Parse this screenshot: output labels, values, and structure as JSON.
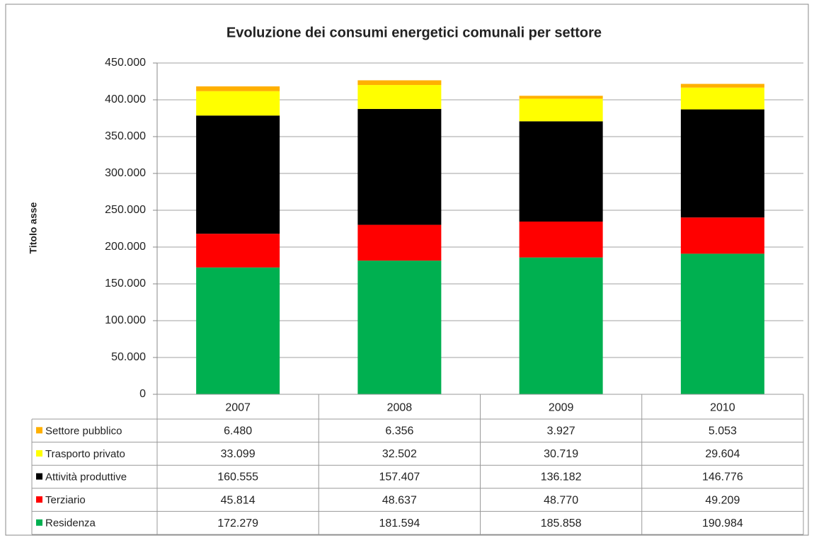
{
  "chart_data": {
    "type": "bar",
    "stacked": true,
    "title": "Evoluzione dei consumi energetici comunali per settore",
    "y_label": "Titolo asse",
    "categories": [
      "2007",
      "2008",
      "2009",
      "2010"
    ],
    "series": [
      {
        "name": "Residenza",
        "color": "#00b050",
        "values": [
          172279,
          181594,
          185858,
          190984
        ],
        "value_labels": [
          "172.279",
          "181.594",
          "185.858",
          "190.984"
        ]
      },
      {
        "name": "Terziario",
        "color": "#ff0000",
        "values": [
          45814,
          48637,
          48770,
          49209
        ],
        "value_labels": [
          "45.814",
          "48.637",
          "48.770",
          "49.209"
        ]
      },
      {
        "name": "Attività produttive",
        "color": "#000000",
        "values": [
          160555,
          157407,
          136182,
          146776
        ],
        "value_labels": [
          "160.555",
          "157.407",
          "136.182",
          "146.776"
        ]
      },
      {
        "name": "Trasporto privato",
        "color": "#ffff00",
        "values": [
          33099,
          32502,
          30719,
          29604
        ],
        "value_labels": [
          "33.099",
          "32.502",
          "30.719",
          "29.604"
        ]
      },
      {
        "name": "Settore pubblico",
        "color": "#ffb000",
        "values": [
          6480,
          6356,
          3927,
          5053
        ],
        "value_labels": [
          "6.480",
          "6.356",
          "3.927",
          "5.053"
        ]
      }
    ],
    "ylim": [
      0,
      450000
    ],
    "yticks": [
      0,
      {
        "value": 50000,
        "label": "50.000"
      },
      {
        "value": 100000,
        "label": "100.000"
      },
      {
        "value": 150000,
        "label": "150.000"
      },
      {
        "value": 200000,
        "label": "200.000"
      },
      {
        "value": 250000,
        "label": "250.000"
      },
      {
        "value": 300000,
        "label": "300.000"
      },
      {
        "value": 350000,
        "label": "350.000"
      },
      {
        "value": 400000,
        "label": "400.000"
      },
      {
        "value": 450000,
        "label": "450.000"
      }
    ],
    "grid": true
  }
}
